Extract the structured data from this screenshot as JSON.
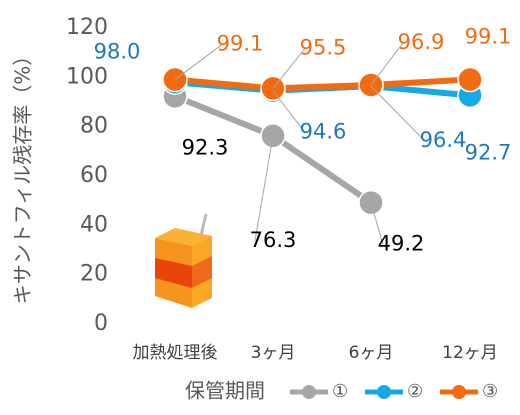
{
  "chart_data": {
    "type": "line",
    "y_label": "キサントフィル残存率（%）",
    "x_label": "保管期間",
    "categories": [
      "加熱処理後",
      "3ヶ月",
      "6ヶ月",
      "12ヶ月"
    ],
    "ylim": [
      0,
      120
    ],
    "yticks": [
      0,
      20,
      40,
      60,
      80,
      100,
      120
    ],
    "series": [
      {
        "name": "①",
        "color": "#a6a6a6",
        "label_color": "#000000",
        "values": [
          92.3,
          76.3,
          49.2,
          null
        ],
        "value_labels": [
          "92.3",
          "76.3",
          "49.2",
          null
        ]
      },
      {
        "name": "②",
        "color": "#16a9e6",
        "label_color": "#1f78c0",
        "values": [
          98.0,
          94.6,
          96.4,
          92.7
        ],
        "value_labels": [
          "98.0",
          "94.6",
          "96.4",
          "92.7"
        ]
      },
      {
        "name": "③",
        "color": "#f26b10",
        "label_color": "#f26b10",
        "values": [
          99.1,
          95.5,
          96.9,
          99.1
        ],
        "value_labels": [
          "99.1",
          "95.5",
          "96.9",
          "99.1"
        ]
      }
    ]
  }
}
